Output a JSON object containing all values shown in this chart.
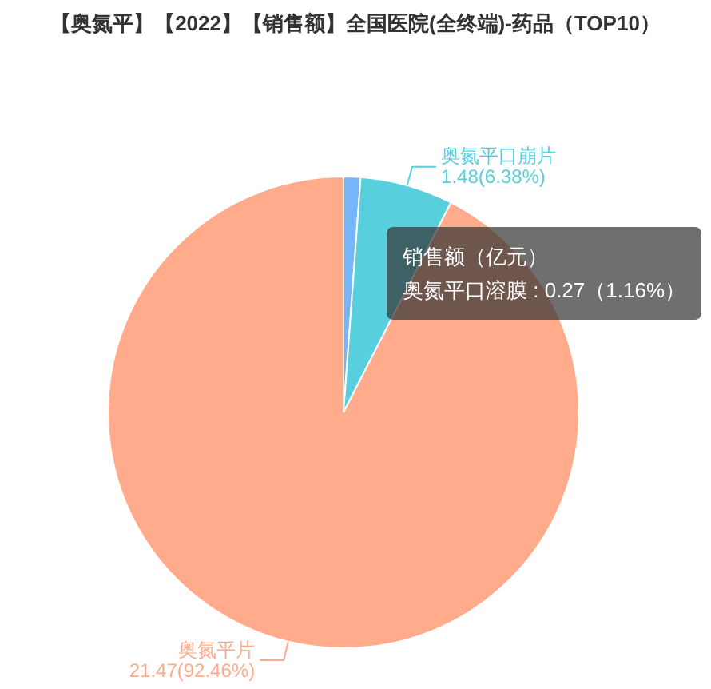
{
  "chart_data": {
    "type": "pie",
    "title": "【奥氮平】【2022】【销售额】全国医院(全终端)-药品（TOP10）",
    "categories": [
      null,
      "奥氮平口崩片",
      "奥氮平片"
    ],
    "values": [
      0.27,
      1.48,
      21.47
    ],
    "colors": [
      "#75b5f8",
      "#58cfdd",
      "#ffab8c"
    ],
    "value_labels": [
      null,
      "1.48(6.38%)",
      "21.47(92.46%)"
    ],
    "annotations": [
      "销售额（亿元）",
      "奥氮平口溶膜 : 0.27（1.16%）"
    ]
  }
}
